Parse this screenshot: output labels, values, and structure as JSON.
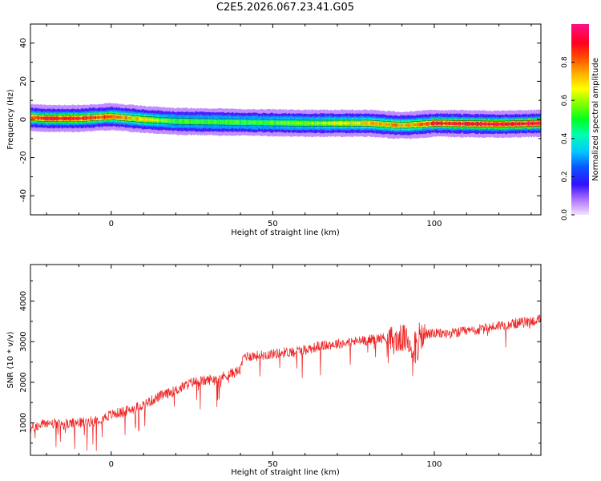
{
  "title": "C2E5.2026.067.23.41.G05",
  "chart_data": [
    {
      "type": "heatmap",
      "xlabel": "Height of straight line (km)",
      "ylabel": "Frequency (Hz)",
      "xlim": [
        -25,
        133
      ],
      "ylim": [
        -50,
        50
      ],
      "xticks": [
        0,
        50,
        100
      ],
      "yticks": [
        -40,
        -20,
        0,
        20,
        40
      ],
      "colorbar": {
        "label": "Normalized spectral amplitude",
        "range": [
          0,
          1
        ],
        "ticks": [
          "0.0",
          "0.2",
          "0.4",
          "0.6",
          "0.8"
        ]
      },
      "ridge": {
        "x": [
          -25,
          -20,
          -10,
          0,
          10,
          20,
          40,
          60,
          80,
          88,
          92,
          100,
          120,
          133
        ],
        "frequency": [
          1,
          0.5,
          0.5,
          1.5,
          0,
          -1,
          -1.5,
          -2,
          -2,
          -3,
          -3,
          -2,
          -2.5,
          -2
        ],
        "amplitude": [
          0.8,
          0.95,
          0.9,
          0.85,
          0.7,
          0.55,
          0.55,
          0.6,
          0.75,
          0.8,
          0.75,
          0.9,
          0.95,
          0.95
        ]
      }
    },
    {
      "type": "line",
      "xlabel": "Height of straight line (km)",
      "ylabel": "SNR (10 * v/v)",
      "xlim": [
        -25,
        133
      ],
      "ylim": [
        200,
        4900
      ],
      "xticks": [
        0,
        50,
        100
      ],
      "yticks": [
        1000,
        2000,
        3000,
        4000
      ],
      "color": "#ee2222",
      "series": [
        {
          "x": [
            -25,
            -20,
            -15,
            -10,
            -5,
            0,
            5,
            10,
            15,
            20,
            25,
            30,
            35,
            40,
            41,
            45,
            50,
            55,
            60,
            65,
            70,
            75,
            80,
            85,
            88,
            90,
            92,
            94,
            95,
            96,
            98,
            100,
            105,
            110,
            115,
            120,
            125,
            130,
            133
          ],
          "values": [
            850,
            1000,
            950,
            1000,
            1050,
            1200,
            1300,
            1450,
            1650,
            1800,
            2000,
            2050,
            2150,
            2300,
            2650,
            2650,
            2700,
            2750,
            2800,
            2900,
            2950,
            3000,
            3050,
            3100,
            3000,
            3100,
            3000,
            2900,
            3000,
            3100,
            3200,
            3200,
            3200,
            3250,
            3300,
            3400,
            3450,
            3500,
            3550
          ]
        }
      ]
    }
  ]
}
